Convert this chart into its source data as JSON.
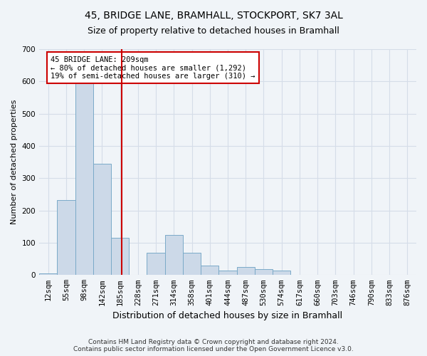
{
  "title1": "45, BRIDGE LANE, BRAMHALL, STOCKPORT, SK7 3AL",
  "title2": "Size of property relative to detached houses in Bramhall",
  "xlabel": "Distribution of detached houses by size in Bramhall",
  "ylabel": "Number of detached properties",
  "footer": "Contains HM Land Registry data © Crown copyright and database right 2024.\nContains public sector information licensed under the Open Government Licence v3.0.",
  "bin_labels": [
    "12sqm",
    "55sqm",
    "98sqm",
    "142sqm",
    "185sqm",
    "228sqm",
    "271sqm",
    "314sqm",
    "358sqm",
    "401sqm",
    "444sqm",
    "487sqm",
    "530sqm",
    "574sqm",
    "617sqm",
    "660sqm",
    "703sqm",
    "746sqm",
    "790sqm",
    "833sqm",
    "876sqm"
  ],
  "bar_values": [
    5,
    232,
    638,
    345,
    115,
    0,
    70,
    125,
    70,
    30,
    15,
    25,
    18,
    15,
    0,
    0,
    0,
    0,
    0,
    0,
    0
  ],
  "bar_color": "#ccd9e8",
  "bar_edge_color": "#7aaac8",
  "annotation_text": "45 BRIDGE LANE: 209sqm\n← 80% of detached houses are smaller (1,292)\n19% of semi-detached houses are larger (310) →",
  "annotation_box_color": "#ffffff",
  "annotation_border_color": "#cc0000",
  "vline_color": "#cc0000",
  "vline_x_index": 4.6,
  "ylim": [
    0,
    700
  ],
  "yticks": [
    0,
    100,
    200,
    300,
    400,
    500,
    600,
    700
  ],
  "grid_color": "#d5dde8",
  "bg_color": "#f0f4f8",
  "plot_bg_color": "#f0f4f8",
  "title1_fontsize": 10,
  "title2_fontsize": 9,
  "ylabel_fontsize": 8,
  "xlabel_fontsize": 9,
  "tick_fontsize": 7.5,
  "annot_fontsize": 7.5,
  "footer_fontsize": 6.5
}
